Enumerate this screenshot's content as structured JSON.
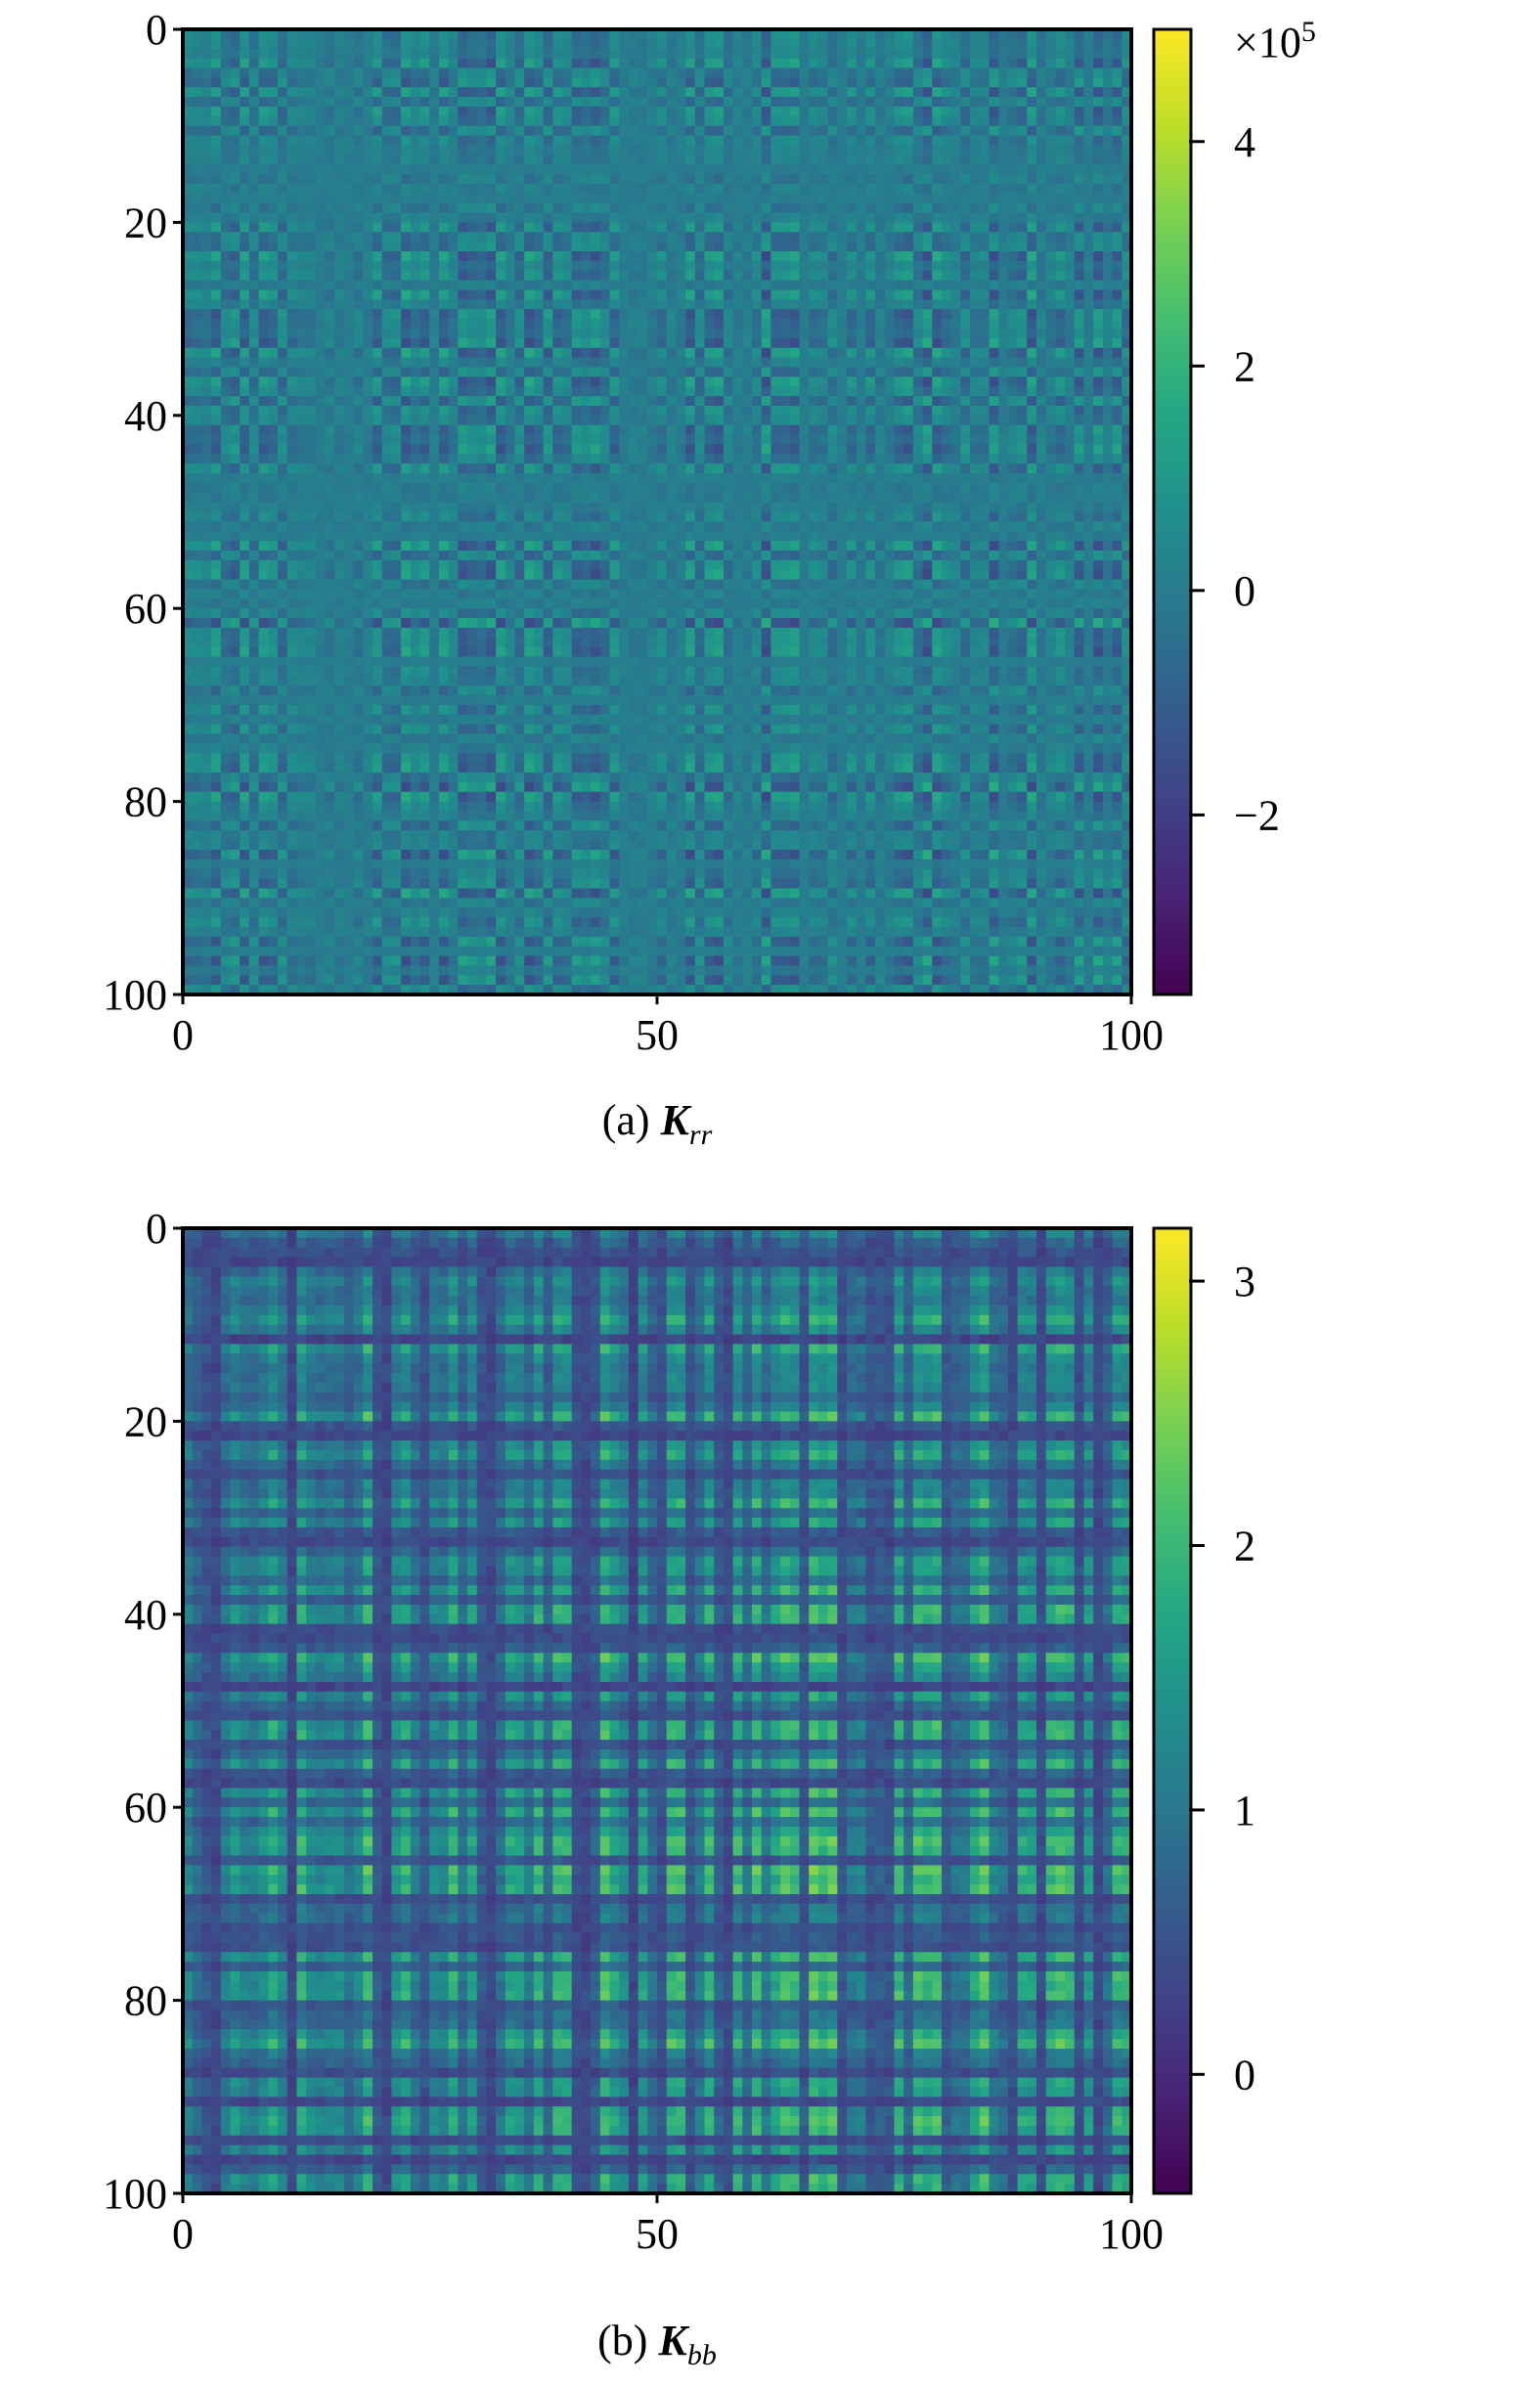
{
  "chart_data": [
    {
      "type": "heatmap",
      "panel": "a",
      "caption": {
        "prefix": "(a) ",
        "symbol": "K",
        "subscript": "rr"
      },
      "matrix_size": 100,
      "x_ticks": [
        0,
        50,
        100
      ],
      "y_ticks": [
        0,
        20,
        40,
        60,
        80,
        100
      ],
      "colorbar": {
        "vmin": -3.6,
        "vmax": 5.0,
        "ticks": [
          -2,
          0,
          2,
          4
        ],
        "tick_labels": [
          "−2",
          "0",
          "2",
          "4"
        ],
        "multiplier": "×10",
        "multiplier_exponent": "5"
      },
      "colormap": "viridis",
      "pattern": {
        "center_value": 0.0,
        "amplitude": 2.2,
        "seed": 11
      }
    },
    {
      "type": "heatmap",
      "panel": "b",
      "caption": {
        "prefix": "(b) ",
        "symbol": "K",
        "subscript": "bb"
      },
      "matrix_size": 100,
      "x_ticks": [
        0,
        50,
        100
      ],
      "y_ticks": [
        0,
        20,
        40,
        60,
        80,
        100
      ],
      "colorbar": {
        "vmin": -0.45,
        "vmax": 3.2,
        "ticks": [
          0,
          1,
          2,
          3
        ],
        "tick_labels": [
          "0",
          "1",
          "2",
          "3"
        ],
        "multiplier": "",
        "multiplier_exponent": ""
      },
      "colormap": "viridis",
      "pattern": {
        "center_value": 0.9,
        "amplitude": 2.0,
        "seed": 23
      }
    }
  ]
}
